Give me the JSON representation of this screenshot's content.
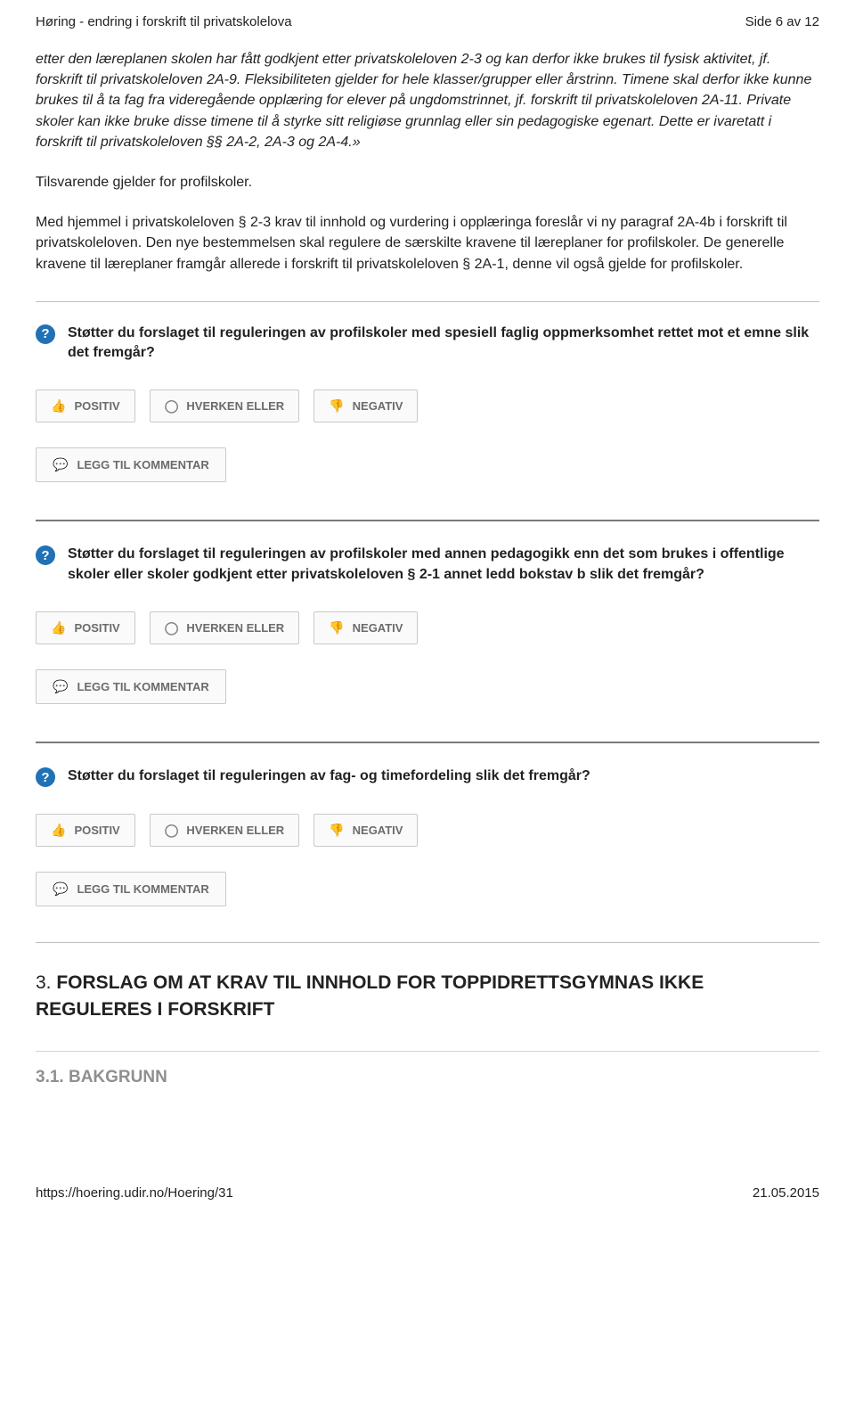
{
  "header": {
    "left": "Høring - endring i forskrift til privatskolelova",
    "right": "Side 6 av 12"
  },
  "para1": "etter den læreplanen skolen har fått godkjent etter privatskoleloven 2-3 og kan derfor ikke brukes til fysisk aktivitet, jf. forskrift til privatskoleloven 2A-9. Fleksibiliteten gjelder for hele klasser/grupper eller årstrinn. Timene skal derfor ikke kunne brukes til å ta fag fra videregående opplæring for elever på ungdomstrinnet, jf. forskrift til privatskoleloven 2A-11. Private skoler kan ikke bruke disse timene til å styrke sitt religiøse grunnlag eller sin pedagogiske egenart. Dette er ivaretatt i forskrift til privatskoleloven §§ 2A-2, 2A-3 og 2A-4.»",
  "para2": "Tilsvarende gjelder for profilskoler.",
  "para3": "Med hjemmel i privatskoleloven § 2-3 krav til innhold og vurdering i opplæringa foreslår vi ny paragraf 2A-4b i forskrift til privatskoleloven. Den nye bestemmelsen skal regulere de særskilte kravene til læreplaner for profilskoler. De generelle kravene til læreplaner framgår allerede i forskrift til privatskoleloven § 2A-1, denne vil også gjelde for profilskoler.",
  "questions": {
    "q1": "Støtter du forslaget til reguleringen av profilskoler med spesiell faglig oppmerksomhet rettet mot et emne slik det fremgår?",
    "q2": "Støtter du forslaget til reguleringen av profilskoler med annen pedagogikk enn det som brukes i offentlige skoler eller skoler godkjent etter privatskoleloven § 2-1 annet ledd bokstav b slik det fremgår?",
    "q3": "Støtter du forslaget til reguleringen av fag- og timefordeling slik det fremgår?"
  },
  "buttons": {
    "positive": "POSITIV",
    "neutral": "HVERKEN ELLER",
    "negative": "NEGATIV",
    "comment": "LEGG TIL KOMMENTAR"
  },
  "section3": {
    "num": "3. ",
    "title": "FORSLAG OM AT KRAV TIL INNHOLD FOR TOPPIDRETTSGYMNAS IKKE REGULERES I FORSKRIFT"
  },
  "section31": "3.1. BAKGRUNN",
  "footer": {
    "left": "https://hoering.udir.no/Hoering/31",
    "right": "21.05.2015"
  }
}
